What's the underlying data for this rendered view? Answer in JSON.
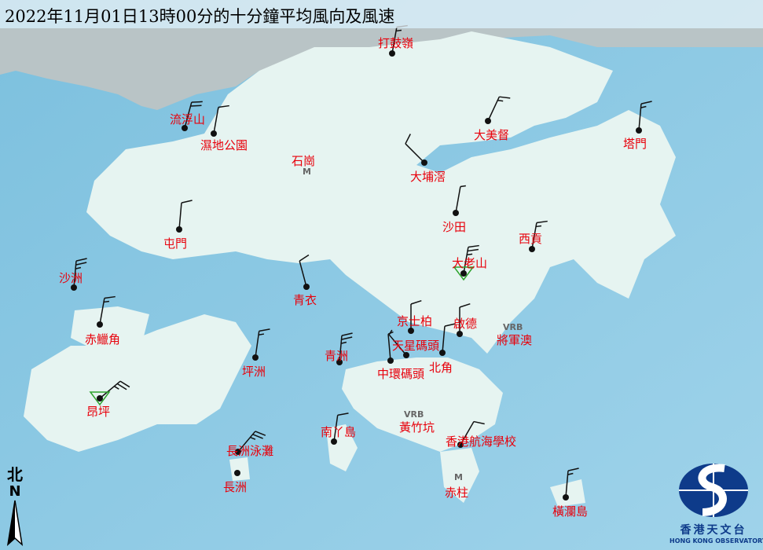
{
  "title": "2022年11月01日13時00分的十分鐘平均風向及風速",
  "wind_units": "knots",
  "colors": {
    "sea": "#8fcbe6",
    "land": "#e6f4f1",
    "label": "#e8000b",
    "barb": "#111111",
    "logo": "#0e3b8a"
  },
  "stations": [
    {
      "name": "打鼓嶺",
      "dir": 10,
      "speed": 15,
      "type": "dot"
    },
    {
      "name": "流浮山",
      "dir": 15,
      "speed": 20,
      "type": "dot"
    },
    {
      "name": "濕地公園",
      "dir": 10,
      "speed": 10,
      "type": "dot"
    },
    {
      "name": "大美督",
      "dir": 25,
      "speed": 15,
      "type": "dot"
    },
    {
      "name": "塔門",
      "dir": 5,
      "speed": 15,
      "type": "dot"
    },
    {
      "name": "大埔滘",
      "dir": 315,
      "speed": 10,
      "type": "dot"
    },
    {
      "name": "沙田",
      "dir": 10,
      "speed": 5,
      "type": "dot"
    },
    {
      "name": "屯門",
      "dir": 5,
      "speed": 10,
      "type": "dot"
    },
    {
      "name": "西貢",
      "dir": 10,
      "speed": 15,
      "type": "dot"
    },
    {
      "name": "大老山",
      "dir": 10,
      "speed": 25,
      "type": "triangle"
    },
    {
      "name": "沙洲",
      "dir": 5,
      "speed": 25,
      "type": "dot"
    },
    {
      "name": "青衣",
      "dir": 345,
      "speed": 10,
      "type": "dot"
    },
    {
      "name": "赤鱲角",
      "dir": 10,
      "speed": 15,
      "type": "dot"
    },
    {
      "name": "京士柏",
      "dir": 0,
      "speed": 10,
      "type": "dot"
    },
    {
      "name": "啟德",
      "dir": 0,
      "speed": 10,
      "type": "dot"
    },
    {
      "name": "天星碼頭",
      "dir": 320,
      "speed": 5,
      "type": "dot"
    },
    {
      "name": "青洲",
      "dir": 5,
      "speed": 25,
      "type": "dot"
    },
    {
      "name": "坪洲",
      "dir": 8,
      "speed": 15,
      "type": "dot"
    },
    {
      "name": "中環碼頭",
      "dir": 355,
      "speed": 5,
      "type": "dot"
    },
    {
      "name": "北角",
      "dir": 5,
      "speed": 10,
      "type": "dot"
    },
    {
      "name": "昂坪",
      "dir": 50,
      "speed": 25,
      "type": "triangle"
    },
    {
      "name": "南丫島",
      "dir": 8,
      "speed": 10,
      "type": "dot"
    },
    {
      "name": "香港航海學校",
      "dir": 30,
      "speed": 10,
      "type": "dot"
    },
    {
      "name": "長洲泳灘",
      "dir": 40,
      "speed": 25,
      "type": "dot"
    },
    {
      "name": "長洲",
      "dir": 5,
      "speed": 0,
      "type": "dot"
    },
    {
      "name": "橫瀾島",
      "dir": 5,
      "speed": 15,
      "type": "dot"
    }
  ],
  "places": [
    {
      "name": "石崗",
      "marker": "M"
    },
    {
      "name": "將軍澳",
      "marker": "VRB"
    },
    {
      "name": "黃竹坑",
      "marker": "VRB"
    },
    {
      "name": "赤柱",
      "marker": "M"
    }
  ],
  "north_arrow": {
    "zh": "北",
    "en": "N"
  },
  "logo": {
    "zh": "香港天文台",
    "en": "HONG KONG OBSERVATORY"
  }
}
